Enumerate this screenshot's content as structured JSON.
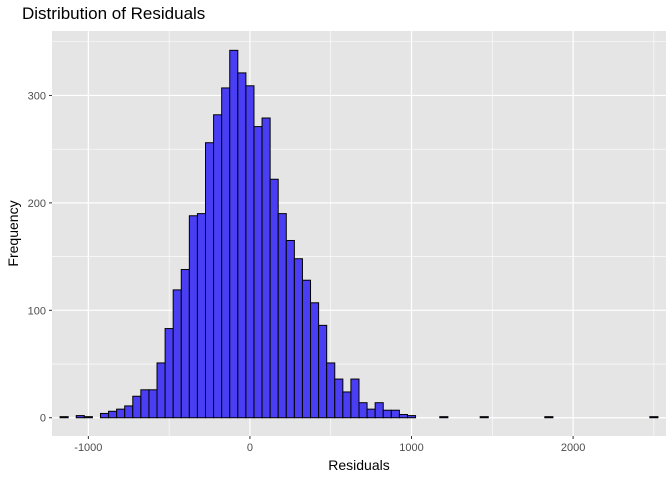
{
  "chart_data": {
    "type": "bar",
    "title": "Distribution of Residuals",
    "xlabel": "Residuals",
    "ylabel": "Frequency",
    "xlim": [
      -1225,
      2575
    ],
    "ylim": [
      -17,
      360
    ],
    "x_ticks": [
      -1000,
      0,
      1000,
      2000
    ],
    "x_tick_labels": [
      "-1000",
      "0",
      "1000",
      "2000"
    ],
    "y_ticks": [
      0,
      100,
      200,
      300
    ],
    "y_tick_labels": [
      "0",
      "100",
      "200",
      "300"
    ],
    "bin_width": 50,
    "series": [
      {
        "fill": "#4a3ef5",
        "stroke": "#000000",
        "bins": [
          {
            "x": -1150,
            "count": 1
          },
          {
            "x": -1050,
            "count": 2
          },
          {
            "x": -1000,
            "count": 1
          },
          {
            "x": -900,
            "count": 4
          },
          {
            "x": -850,
            "count": 6
          },
          {
            "x": -800,
            "count": 8
          },
          {
            "x": -750,
            "count": 11
          },
          {
            "x": -700,
            "count": 20
          },
          {
            "x": -650,
            "count": 26
          },
          {
            "x": -600,
            "count": 26
          },
          {
            "x": -550,
            "count": 51
          },
          {
            "x": -500,
            "count": 83
          },
          {
            "x": -450,
            "count": 119
          },
          {
            "x": -400,
            "count": 138
          },
          {
            "x": -350,
            "count": 188
          },
          {
            "x": -300,
            "count": 190
          },
          {
            "x": -250,
            "count": 256
          },
          {
            "x": -200,
            "count": 282
          },
          {
            "x": -150,
            "count": 307
          },
          {
            "x": -100,
            "count": 342
          },
          {
            "x": -50,
            "count": 321
          },
          {
            "x": 0,
            "count": 309
          },
          {
            "x": 50,
            "count": 271
          },
          {
            "x": 100,
            "count": 279
          },
          {
            "x": 150,
            "count": 222
          },
          {
            "x": 200,
            "count": 190
          },
          {
            "x": 250,
            "count": 165
          },
          {
            "x": 300,
            "count": 148
          },
          {
            "x": 350,
            "count": 128
          },
          {
            "x": 400,
            "count": 107
          },
          {
            "x": 450,
            "count": 86
          },
          {
            "x": 500,
            "count": 51
          },
          {
            "x": 550,
            "count": 36
          },
          {
            "x": 600,
            "count": 24
          },
          {
            "x": 650,
            "count": 36
          },
          {
            "x": 700,
            "count": 14
          },
          {
            "x": 750,
            "count": 8
          },
          {
            "x": 800,
            "count": 14
          },
          {
            "x": 850,
            "count": 7
          },
          {
            "x": 900,
            "count": 7
          },
          {
            "x": 950,
            "count": 3
          },
          {
            "x": 1000,
            "count": 2
          },
          {
            "x": 1200,
            "count": 1
          },
          {
            "x": 1450,
            "count": 1
          },
          {
            "x": 1850,
            "count": 1
          },
          {
            "x": 2500,
            "count": 1
          }
        ]
      }
    ],
    "grid": true,
    "panel_background": "#e5e5e5",
    "grid_color": "#ffffff"
  }
}
